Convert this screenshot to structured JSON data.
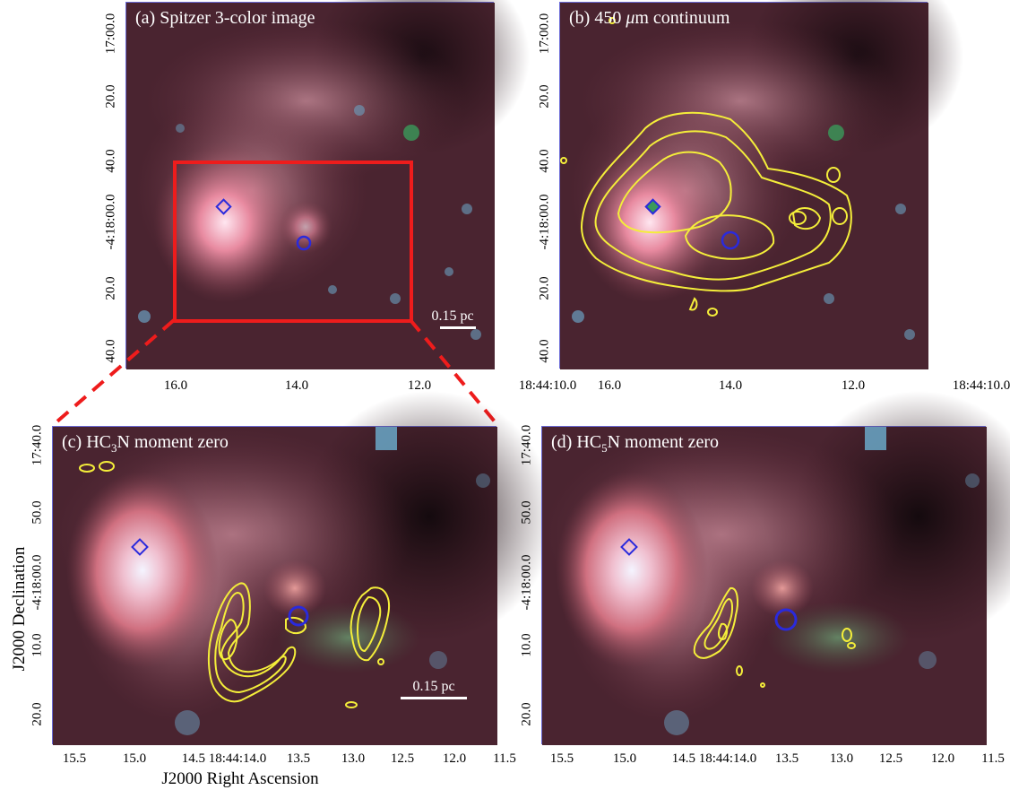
{
  "panels": {
    "a": {
      "title": "(a) Spitzer 3-color image",
      "xticks": [
        "16.0",
        "14.0",
        "12.0",
        "18:44:10.0"
      ],
      "yticks": [
        "17:00.0",
        "20.0",
        "40.0",
        "-4:18:00.0",
        "20.0",
        "40.0"
      ],
      "scalebar": "0.15 pc"
    },
    "b": {
      "title_pre": "(b) 450 ",
      "title_unit": "μ",
      "title_post": "m continuum",
      "xticks": [
        "16.0",
        "14.0",
        "12.0",
        "18:44:10.0"
      ],
      "yticks": [
        "17:00.0",
        "20.0",
        "40.0",
        "-4:18:00.0",
        "20.0",
        "40.0"
      ]
    },
    "c": {
      "title_pre": "(c) HC",
      "title_sub": "3",
      "title_post": "N moment zero",
      "xticks": [
        "15.5",
        "15.0",
        "14.5 18:44:14.0",
        "13.5",
        "13.0",
        "12.5",
        "12.0",
        "11.5"
      ],
      "yticks": [
        "17:40.0",
        "50.0",
        "-4:18:00.0",
        "10.0",
        "20.0"
      ],
      "scalebar": "0.15 pc"
    },
    "d": {
      "title_pre": "(d) HC",
      "title_sub": "5",
      "title_post": "N moment zero",
      "xticks": [
        "15.5",
        "15.0",
        "14.5 18:44:14.0",
        "13.5",
        "13.0",
        "12.5",
        "12.0",
        "11.5"
      ],
      "yticks": [
        "17:40.0",
        "50.0",
        "-4:18:00.0",
        "10.0",
        "20.0"
      ]
    }
  },
  "axes": {
    "xlabel": "J2000 Right Ascension",
    "ylabel": "J2000 Declination"
  },
  "colors": {
    "contour": "#f4ee3a",
    "marker": "#2a2adc",
    "zoom_box": "#ee1c1c",
    "frame": "#6a6ad6"
  }
}
